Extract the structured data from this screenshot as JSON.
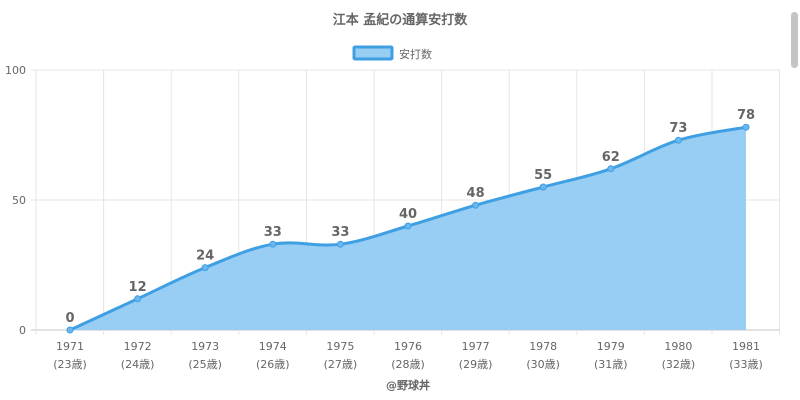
{
  "chart_data": {
    "type": "area",
    "title": "江本 孟紀の通算安打数",
    "x": [
      "1971",
      "1972",
      "1973",
      "1974",
      "1975",
      "1976",
      "1977",
      "1978",
      "1979",
      "1980",
      "1981"
    ],
    "x_sublabels": [
      "(23歳)",
      "(24歳)",
      "(25歳)",
      "(26歳)",
      "(27歳)",
      "(28歳)",
      "(29歳)",
      "(30歳)",
      "(31歳)",
      "(32歳)",
      "(33歳)"
    ],
    "series": [
      {
        "name": "安打数",
        "values": [
          0,
          12,
          24,
          33,
          33,
          40,
          48,
          55,
          62,
          73,
          78
        ]
      }
    ],
    "y_ticks": [
      0,
      50,
      100
    ],
    "ylim": [
      0,
      100
    ],
    "grid": true,
    "legend_position": "top-center",
    "data_labels": true,
    "source_label": "@野球丼",
    "colors": {
      "line": "#3f9fe3",
      "fill": "#98cdf4",
      "grid": "#e6e6e6",
      "axis": "#c4c4c4",
      "text": "#666666",
      "point_fill": "#6ab6ee"
    }
  }
}
